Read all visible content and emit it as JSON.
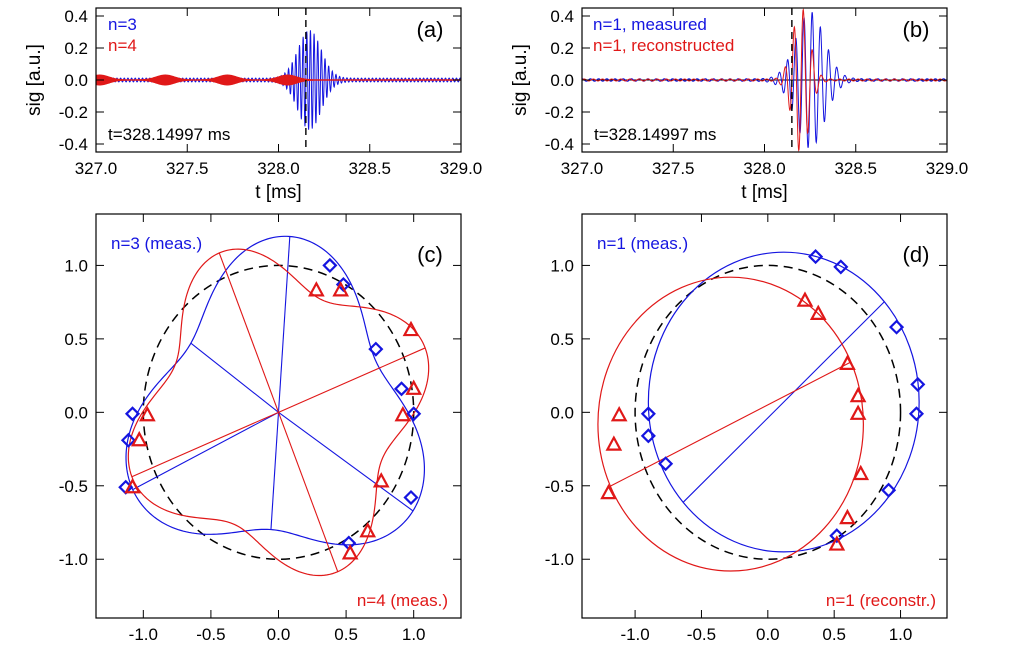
{
  "colors": {
    "blue": "#1515e0",
    "red": "#e01818",
    "black": "#000000"
  },
  "chart_data": [
    {
      "id": "a",
      "type": "line",
      "panel_label": "(a)",
      "xlabel": "t  [ms]",
      "ylabel": "sig [a.u.]",
      "xlim": [
        327.0,
        329.0
      ],
      "ylim": [
        -0.45,
        0.45
      ],
      "xticks": [
        "327.0",
        "327.5",
        "328.0",
        "328.5",
        "329.0"
      ],
      "xtick_values": [
        327.0,
        327.5,
        328.0,
        328.5,
        329.0
      ],
      "yticks": [
        "0.4",
        "0.2",
        "0.0",
        "-0.2",
        "-0.4"
      ],
      "ytick_values": [
        0.4,
        0.2,
        0.0,
        -0.2,
        -0.4
      ],
      "series": [
        {
          "name": "n=3",
          "color": "blue",
          "envelope": {
            "center": 328.17,
            "width": 0.09,
            "amplitude": 0.3,
            "base_amplitude": 0.012,
            "period_ms": 0.02
          }
        },
        {
          "name": "n=4",
          "color": "red",
          "envelope": {
            "bursts": [
              327.02,
              327.38,
              327.72,
              328.05
            ],
            "width": 0.07,
            "amplitude": 0.03
          }
        }
      ],
      "vline": 328.14997,
      "annotation": "t=328.14997 ms"
    },
    {
      "id": "b",
      "type": "line",
      "panel_label": "(b)",
      "xlabel": "t  [ms]",
      "ylabel": "sig [a.u.]",
      "xlim": [
        327.0,
        329.0
      ],
      "ylim": [
        -0.45,
        0.45
      ],
      "xticks": [
        "327.0",
        "327.5",
        "328.0",
        "328.5",
        "329.0"
      ],
      "xtick_values": [
        327.0,
        327.5,
        328.0,
        328.5,
        329.0
      ],
      "yticks": [
        "0.4",
        "0.2",
        "0.0",
        "-0.2",
        "-0.4"
      ],
      "ytick_values": [
        0.4,
        0.2,
        0.0,
        -0.2,
        -0.4
      ],
      "series": [
        {
          "name": "n=1, measured",
          "color": "blue",
          "envelope": {
            "center": 328.25,
            "width": 0.11,
            "amplitude": 0.42,
            "base_amplitude": 0.008,
            "period_ms": 0.045
          }
        },
        {
          "name": "n=1, reconstructed",
          "color": "red",
          "envelope": {
            "center": 328.2,
            "width": 0.065,
            "amplitude": 0.45,
            "base_amplitude": 0.006,
            "period_ms": 0.05
          }
        }
      ],
      "vline": 328.14997,
      "annotation": "t=328.14997 ms"
    },
    {
      "id": "c",
      "type": "scatter",
      "panel_label": "(c)",
      "xlim": [
        -1.35,
        1.35
      ],
      "ylim": [
        -1.4,
        1.35
      ],
      "xticks": [
        "-1.0",
        "-0.5",
        "0.0",
        "0.5",
        "1.0"
      ],
      "xtick_values": [
        -1.0,
        -0.5,
        0.0,
        0.5,
        1.0
      ],
      "yticks": [
        "1.0",
        "0.5",
        "0.0",
        "-0.5",
        "-1.0"
      ],
      "ytick_values": [
        1.0,
        0.5,
        0.0,
        -0.5,
        -1.0
      ],
      "reference_circle_radius": 1.0,
      "series": [
        {
          "name": "n=3 (meas.)",
          "color": "blue",
          "marker": "diamond",
          "curve": {
            "mode": 3,
            "base": 1.0,
            "amplitude": 0.2,
            "peak_angle_deg": 86
          },
          "spokes_deg": [
            86,
            144,
            206,
            266,
            326
          ],
          "points": [
            [
              0.38,
              1.0
            ],
            [
              0.48,
              0.87
            ],
            [
              0.72,
              0.43
            ],
            [
              0.91,
              0.16
            ],
            [
              1.0,
              -0.01
            ],
            [
              0.98,
              -0.58
            ],
            [
              -1.08,
              -0.01
            ],
            [
              -1.11,
              -0.19
            ],
            [
              -1.13,
              -0.51
            ],
            [
              0.52,
              -0.89
            ]
          ]
        },
        {
          "name": "n=4 (meas.)",
          "color": "red",
          "marker": "triangle",
          "curve": {
            "mode": 4,
            "base": 1.0,
            "amplitude": 0.17,
            "peak_angle_deg": 22
          },
          "spokes_deg": [
            22,
            112,
            202,
            292
          ],
          "points": [
            [
              0.28,
              0.83
            ],
            [
              0.46,
              0.83
            ],
            [
              0.98,
              0.56
            ],
            [
              1.0,
              0.16
            ],
            [
              0.92,
              -0.02
            ],
            [
              0.76,
              -0.47
            ],
            [
              0.66,
              -0.81
            ],
            [
              0.53,
              -0.96
            ],
            [
              -0.97,
              -0.02
            ],
            [
              -1.03,
              -0.19
            ],
            [
              -1.08,
              -0.51
            ]
          ]
        }
      ]
    },
    {
      "id": "d",
      "type": "scatter",
      "panel_label": "(d)",
      "xlim": [
        -1.4,
        1.35
      ],
      "ylim": [
        -1.4,
        1.35
      ],
      "xticks": [
        "-1.0",
        "-0.5",
        "0.0",
        "0.5",
        "1.0"
      ],
      "xtick_values": [
        -1.0,
        -0.5,
        0.0,
        0.5,
        1.0
      ],
      "yticks": [
        "1.0",
        "0.5",
        "0.0",
        "-0.5",
        "-1.0"
      ],
      "ytick_values": [
        1.0,
        0.5,
        0.0,
        -0.5,
        -1.0
      ],
      "reference_circle_radius": 1.0,
      "series": [
        {
          "name": "n=1 (meas.)",
          "color": "blue",
          "marker": "diamond",
          "circle": {
            "cx": 0.12,
            "cy": 0.07,
            "r": 1.02
          },
          "diameter_deg": 42,
          "points": [
            [
              0.36,
              1.06
            ],
            [
              0.55,
              0.99
            ],
            [
              0.97,
              0.58
            ],
            [
              1.13,
              0.19
            ],
            [
              1.12,
              -0.01
            ],
            [
              0.91,
              -0.53
            ],
            [
              0.52,
              -0.84
            ],
            [
              -0.9,
              -0.01
            ],
            [
              -0.9,
              -0.16
            ],
            [
              -0.77,
              -0.35
            ]
          ]
        },
        {
          "name": "n=1 (reconstr.)",
          "color": "red",
          "marker": "triangle",
          "circle": {
            "cx": -0.28,
            "cy": -0.08,
            "r": 1.0
          },
          "diameter_deg": 25,
          "points": [
            [
              0.28,
              0.76
            ],
            [
              0.38,
              0.67
            ],
            [
              0.6,
              0.33
            ],
            [
              0.68,
              0.11
            ],
            [
              0.68,
              -0.01
            ],
            [
              0.7,
              -0.42
            ],
            [
              0.6,
              -0.72
            ],
            [
              0.52,
              -0.9
            ],
            [
              -1.12,
              -0.02
            ],
            [
              -1.16,
              -0.22
            ],
            [
              -1.2,
              -0.55
            ]
          ]
        }
      ]
    }
  ]
}
